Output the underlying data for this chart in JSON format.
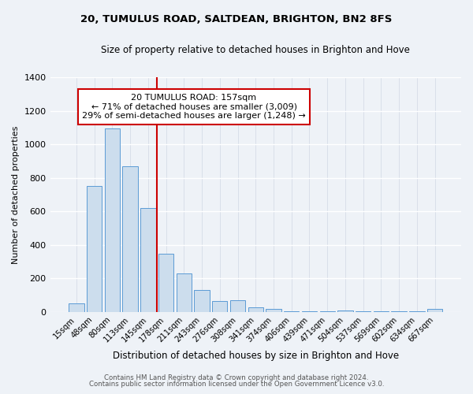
{
  "title": "20, TUMULUS ROAD, SALTDEAN, BRIGHTON, BN2 8FS",
  "subtitle": "Size of property relative to detached houses in Brighton and Hove",
  "xlabel": "Distribution of detached houses by size in Brighton and Hove",
  "ylabel": "Number of detached properties",
  "footnote1": "Contains HM Land Registry data © Crown copyright and database right 2024.",
  "footnote2": "Contains public sector information licensed under the Open Government Licence v3.0.",
  "bar_labels": [
    "15sqm",
    "48sqm",
    "80sqm",
    "113sqm",
    "145sqm",
    "178sqm",
    "211sqm",
    "243sqm",
    "276sqm",
    "308sqm",
    "341sqm",
    "374sqm",
    "406sqm",
    "439sqm",
    "471sqm",
    "504sqm",
    "537sqm",
    "569sqm",
    "602sqm",
    "634sqm",
    "667sqm"
  ],
  "bar_values": [
    50,
    750,
    1095,
    870,
    620,
    345,
    228,
    130,
    65,
    70,
    25,
    18,
    3,
    3,
    3,
    10,
    3,
    3,
    3,
    3,
    15
  ],
  "bar_color": "#ccdded",
  "bar_edge_color": "#5b9bd5",
  "vline_x": 4.5,
  "vline_color": "#cc0000",
  "annotation_title": "20 TUMULUS ROAD: 157sqm",
  "annotation_line1": "← 71% of detached houses are smaller (3,009)",
  "annotation_line2": "29% of semi-detached houses are larger (1,248) →",
  "annotation_box_color": "#ffffff",
  "annotation_box_edge": "#cc0000",
  "ylim": [
    0,
    1400
  ],
  "yticks": [
    0,
    200,
    400,
    600,
    800,
    1000,
    1200,
    1400
  ],
  "background_color": "#eef2f7",
  "plot_background": "#eef2f7"
}
